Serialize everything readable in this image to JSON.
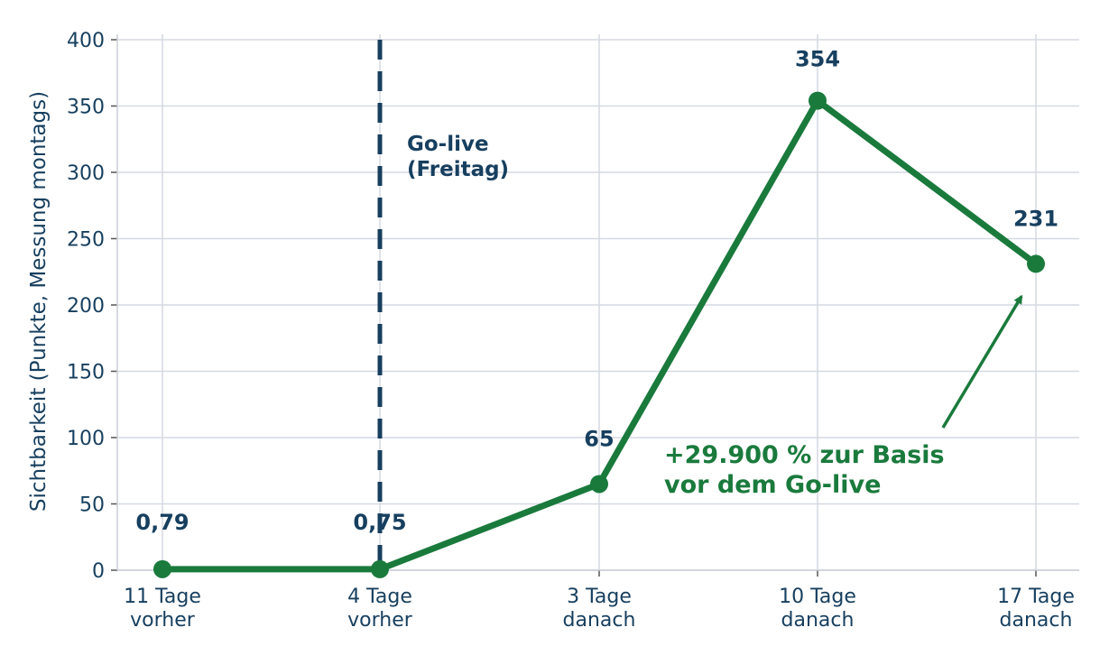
{
  "chart_data": {
    "type": "line",
    "categories": [
      [
        "11 Tage",
        "vorher"
      ],
      [
        "4 Tage",
        "vorher"
      ],
      [
        "3 Tage",
        "danach"
      ],
      [
        "10 Tage",
        "danach"
      ],
      [
        "17 Tage",
        "danach"
      ]
    ],
    "values": [
      0.79,
      0.75,
      65,
      354,
      231
    ],
    "data_labels": [
      "0,79",
      "0,75",
      "65",
      "354",
      "231"
    ],
    "ylabel": "Sichtbarkeit (Punkte, Messung montags)",
    "ylim": [
      0,
      400
    ],
    "yticks": [
      0,
      50,
      100,
      150,
      200,
      250,
      300,
      350,
      400
    ],
    "grid": true,
    "event": {
      "category_index": 1,
      "label_lines": [
        "Go-live",
        "(Freitag)"
      ]
    },
    "annotation": {
      "lines": [
        "+29.900 % zur Basis",
        "vor dem Go-live"
      ],
      "points_to_index": 4
    },
    "colors": {
      "line": "#1a7a3c",
      "text": "#173f5f",
      "event_line": "#173f5f",
      "grid": "#d5d9e3"
    }
  }
}
